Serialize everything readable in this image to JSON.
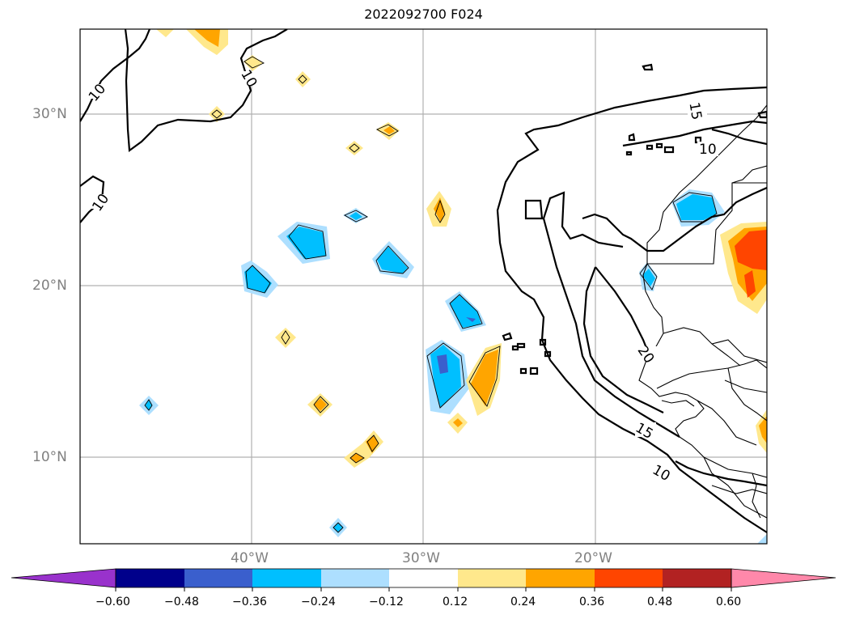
{
  "title": "2022092700 F024",
  "map": {
    "lat_labels": [
      "30°N",
      "20°N",
      "10°N"
    ],
    "lon_labels": [
      "40°W",
      "30°W",
      "20°W"
    ],
    "contour_labels": [
      "10",
      "10",
      "10",
      "15",
      "10",
      "20",
      "15",
      "10"
    ],
    "colors": {
      "purple": "#9932CC",
      "navy": "#00008B",
      "royal": "#3A5FCD",
      "deep_sky": "#00BFFF",
      "light_blue": "#ADDFFF",
      "white": "#FFFFFF",
      "khaki": "#FFE88C",
      "orange": "#FFA500",
      "orange_red": "#FF4500",
      "firebrick": "#B22222",
      "pink": "#FF88AA"
    }
  },
  "colorbar": {
    "ticks": [
      "−0.60",
      "−0.48",
      "−0.36",
      "−0.24",
      "−0.12",
      "0.12",
      "0.24",
      "0.36",
      "0.48",
      "0.60"
    ]
  }
}
